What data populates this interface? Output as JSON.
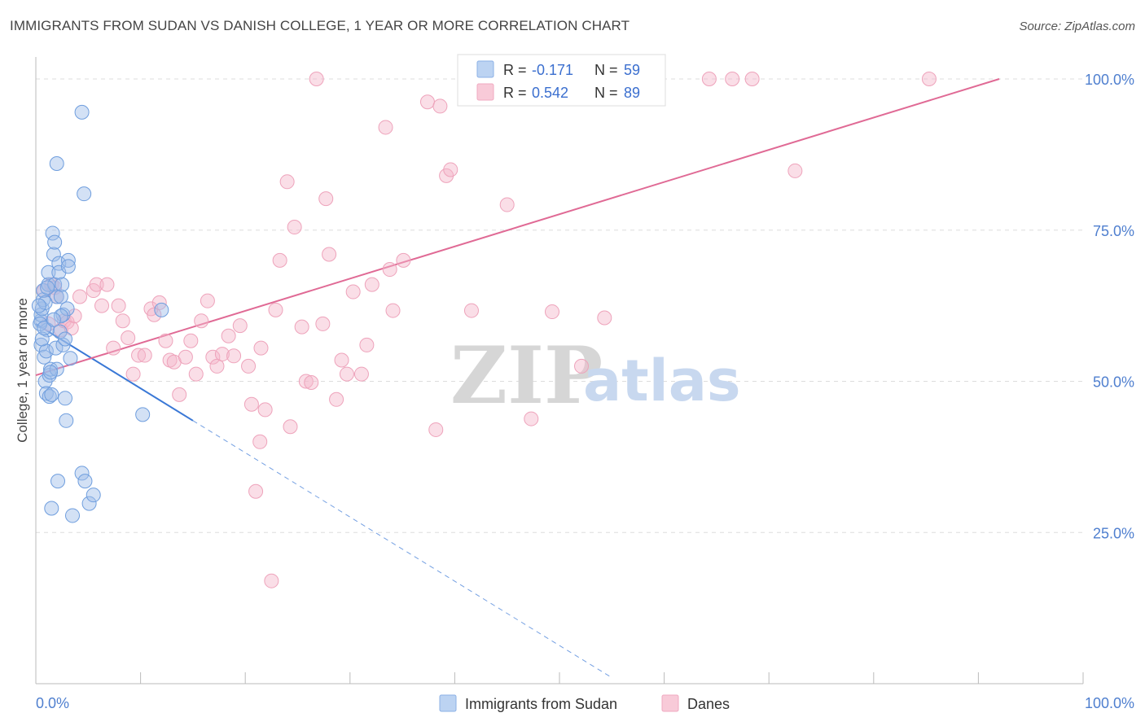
{
  "header": {
    "title": "IMMIGRANTS FROM SUDAN VS DANISH COLLEGE, 1 YEAR OR MORE CORRELATION CHART",
    "source": "Source: ZipAtlas.com"
  },
  "watermark": {
    "zip": "ZIP",
    "atlas": "atlas"
  },
  "legend": {
    "r_label": "R =",
    "n_label": "N =",
    "entries": [
      {
        "r": "-0.171",
        "n": "59",
        "color": "#9dbde8"
      },
      {
        "r": "0.542",
        "n": "89",
        "color": "#f4b6c9"
      }
    ]
  },
  "chart_data": {
    "type": "scatter",
    "title": "IMMIGRANTS FROM SUDAN VS DANISH COLLEGE, 1 YEAR OR MORE CORRELATION CHART",
    "xlabel": "",
    "ylabel": "College, 1 year or more",
    "xlim": [
      0,
      100
    ],
    "ylim": [
      0,
      102
    ],
    "x_tick_labels": [
      "0.0%",
      "100.0%"
    ],
    "y_ticks": [
      25,
      50,
      75,
      100
    ],
    "y_tick_labels": [
      "25.0%",
      "50.0%",
      "75.0%",
      "100.0%"
    ],
    "grid": true,
    "legend_position": "top-center",
    "series": [
      {
        "name": "Immigrants from Sudan",
        "color": "#6f9ede",
        "line_color": "#3a78d6",
        "trend": {
          "x": [
            0,
            15
          ],
          "y": [
            59.5,
            43.5
          ],
          "dashed_to": [
            55,
            1
          ]
        },
        "points": [
          [
            0.5,
            56
          ],
          [
            0.5,
            60
          ],
          [
            0.5,
            61
          ],
          [
            0.6,
            62
          ],
          [
            0.7,
            63.5
          ],
          [
            0.7,
            65
          ],
          [
            0.8,
            54
          ],
          [
            0.9,
            50
          ],
          [
            1,
            48
          ],
          [
            1,
            55
          ],
          [
            1.1,
            58.5
          ],
          [
            1.2,
            66
          ],
          [
            1.2,
            68
          ],
          [
            1.3,
            51
          ],
          [
            1.3,
            47.5
          ],
          [
            1.4,
            52
          ],
          [
            1.5,
            47.8
          ],
          [
            1.5,
            29
          ],
          [
            1.6,
            74.5
          ],
          [
            1.7,
            71
          ],
          [
            1.8,
            73
          ],
          [
            1.8,
            66
          ],
          [
            1.9,
            55.5
          ],
          [
            2,
            64
          ],
          [
            2,
            86
          ],
          [
            2,
            52
          ],
          [
            2.1,
            33.5
          ],
          [
            2.2,
            69.5
          ],
          [
            2.2,
            68
          ],
          [
            2.3,
            58.2
          ],
          [
            2.4,
            64
          ],
          [
            2.5,
            66
          ],
          [
            2.6,
            61
          ],
          [
            2.6,
            56
          ],
          [
            2.8,
            57
          ],
          [
            2.8,
            47.2
          ],
          [
            2.9,
            43.5
          ],
          [
            3,
            62
          ],
          [
            3.1,
            70
          ],
          [
            3.1,
            69
          ],
          [
            3.3,
            53.8
          ],
          [
            3.5,
            27.8
          ],
          [
            4.4,
            94.5
          ],
          [
            4.4,
            34.8
          ],
          [
            4.6,
            81
          ],
          [
            4.7,
            33.5
          ],
          [
            5.1,
            29.8
          ],
          [
            5.5,
            31.2
          ],
          [
            10.2,
            44.5
          ],
          [
            12,
            61.8
          ],
          [
            0.4,
            59.5
          ],
          [
            0.9,
            63
          ],
          [
            1.4,
            51.5
          ],
          [
            0.6,
            57
          ],
          [
            1.1,
            65.5
          ],
          [
            0.8,
            58.8
          ],
          [
            2.4,
            60.8
          ],
          [
            1.7,
            60.2
          ],
          [
            0.3,
            62.5
          ]
        ]
      },
      {
        "name": "Danes",
        "color": "#f0a0b8",
        "line_color": "#e06a95",
        "trend": {
          "x": [
            0,
            92
          ],
          "y": [
            51,
            100
          ]
        },
        "points": [
          [
            0.8,
            65
          ],
          [
            1.2,
            59.5
          ],
          [
            1.5,
            66
          ],
          [
            1.8,
            65.5
          ],
          [
            2,
            64
          ],
          [
            2.4,
            58.5
          ],
          [
            2.7,
            60
          ],
          [
            3,
            59.8
          ],
          [
            3.4,
            58.8
          ],
          [
            3.7,
            60.8
          ],
          [
            4.2,
            64
          ],
          [
            5.5,
            65
          ],
          [
            5.8,
            66
          ],
          [
            6.3,
            62.5
          ],
          [
            6.8,
            66
          ],
          [
            7.4,
            55.5
          ],
          [
            7.9,
            62.5
          ],
          [
            8.3,
            60
          ],
          [
            8.8,
            57.2
          ],
          [
            9.3,
            51.2
          ],
          [
            9.8,
            54.3
          ],
          [
            10.4,
            54.3
          ],
          [
            11,
            62
          ],
          [
            11.3,
            61
          ],
          [
            11.8,
            63
          ],
          [
            12.4,
            56.7
          ],
          [
            12.8,
            53.5
          ],
          [
            13.2,
            53.2
          ],
          [
            13.7,
            47.8
          ],
          [
            14.3,
            54
          ],
          [
            14.8,
            56.7
          ],
          [
            15.3,
            51.2
          ],
          [
            15.8,
            60
          ],
          [
            16.4,
            63.3
          ],
          [
            16.9,
            54
          ],
          [
            17.3,
            52.5
          ],
          [
            17.8,
            54.5
          ],
          [
            18.4,
            57.5
          ],
          [
            18.9,
            54.2
          ],
          [
            19.5,
            59.2
          ],
          [
            20.3,
            52.5
          ],
          [
            20.6,
            46.2
          ],
          [
            21,
            31.8
          ],
          [
            21.4,
            40
          ],
          [
            21.9,
            45.3
          ],
          [
            22.5,
            17
          ],
          [
            22.9,
            61.8
          ],
          [
            23.3,
            70
          ],
          [
            24,
            83
          ],
          [
            24.3,
            42.5
          ],
          [
            24.7,
            75.5
          ],
          [
            25.4,
            59
          ],
          [
            25.8,
            50
          ],
          [
            26.3,
            49.8
          ],
          [
            26.8,
            100
          ],
          [
            27.4,
            59.5
          ],
          [
            27.7,
            80.2
          ],
          [
            28,
            71
          ],
          [
            28.7,
            47
          ],
          [
            29.2,
            53.5
          ],
          [
            29.7,
            51.2
          ],
          [
            30.3,
            64.8
          ],
          [
            31.1,
            51.2
          ],
          [
            31.6,
            56
          ],
          [
            32.1,
            66
          ],
          [
            33.4,
            92
          ],
          [
            33.8,
            68.5
          ],
          [
            34.1,
            61.7
          ],
          [
            35.1,
            70
          ],
          [
            37.4,
            96.2
          ],
          [
            38.2,
            42
          ],
          [
            38.6,
            95.5
          ],
          [
            39.2,
            84
          ],
          [
            39.6,
            85
          ],
          [
            41.6,
            61.7
          ],
          [
            44.4,
            100
          ],
          [
            45,
            79.2
          ],
          [
            47.3,
            43.8
          ],
          [
            49.3,
            61.5
          ],
          [
            52.1,
            52.5
          ],
          [
            54.3,
            60.5
          ],
          [
            56.2,
            100
          ],
          [
            64.3,
            100
          ],
          [
            66.5,
            100
          ],
          [
            68.4,
            100
          ],
          [
            72.5,
            84.8
          ],
          [
            85.3,
            100
          ],
          [
            55,
            100
          ],
          [
            21.5,
            55.5
          ]
        ]
      }
    ]
  },
  "bottom_legend": [
    {
      "label": "Immigrants from Sudan",
      "color": "#9dbde8",
      "border": "#6f9ede"
    },
    {
      "label": "Danes",
      "color": "#f4b6c9",
      "border": "#f0a0b8"
    }
  ]
}
